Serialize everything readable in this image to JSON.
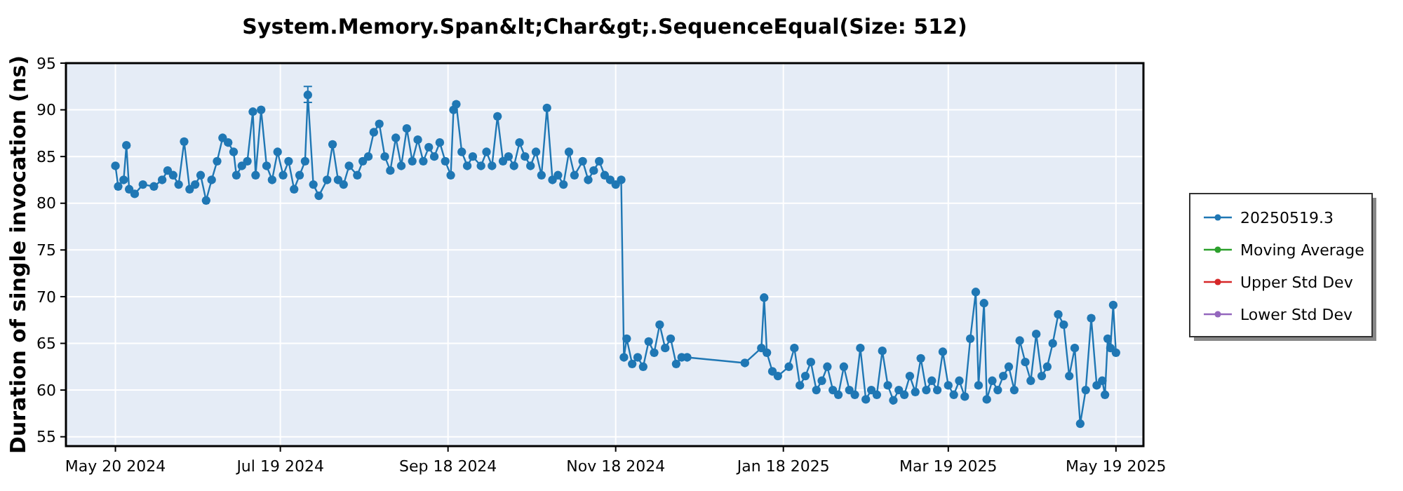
{
  "chart_data": {
    "type": "line",
    "title": "System.Memory.Span&lt;Char&gt;.SequenceEqual(Size: 512)",
    "ylabel": "Duration of single invocation (ns)",
    "xlim": [
      "2024-05-02",
      "2025-05-29"
    ],
    "ylim": [
      54,
      95
    ],
    "xticks": [
      {
        "value": "2024-05-20",
        "label": "May 20 2024"
      },
      {
        "value": "2024-07-19",
        "label": "Jul 19 2024"
      },
      {
        "value": "2024-09-18",
        "label": "Sep 18 2024"
      },
      {
        "value": "2024-11-18",
        "label": "Nov 18 2024"
      },
      {
        "value": "2025-01-18",
        "label": "Jan 18 2025"
      },
      {
        "value": "2025-03-19",
        "label": "Mar 19 2025"
      },
      {
        "value": "2025-05-19",
        "label": "May 19 2025"
      }
    ],
    "yticks": [
      55,
      60,
      65,
      70,
      75,
      80,
      85,
      90,
      95
    ],
    "grid": true,
    "legend": "right",
    "marker": "circle",
    "line_style": "solid",
    "series": [
      {
        "name": "20250519.3",
        "color": "#1f77b4",
        "x": [
          "2024-05-20",
          "2024-05-21",
          "2024-05-23",
          "2024-05-24",
          "2024-05-25",
          "2024-05-27",
          "2024-05-30",
          "2024-06-03",
          "2024-06-06",
          "2024-06-08",
          "2024-06-10",
          "2024-06-12",
          "2024-06-14",
          "2024-06-16",
          "2024-06-18",
          "2024-06-20",
          "2024-06-22",
          "2024-06-24",
          "2024-06-26",
          "2024-06-28",
          "2024-06-30",
          "2024-07-02",
          "2024-07-03",
          "2024-07-05",
          "2024-07-07",
          "2024-07-09",
          "2024-07-10",
          "2024-07-12",
          "2024-07-14",
          "2024-07-16",
          "2024-07-18",
          "2024-07-20",
          "2024-07-22",
          "2024-07-24",
          "2024-07-26",
          "2024-07-28",
          "2024-07-29",
          "2024-07-31",
          "2024-08-02",
          "2024-08-05",
          "2024-08-07",
          "2024-08-09",
          "2024-08-11",
          "2024-08-13",
          "2024-08-16",
          "2024-08-18",
          "2024-08-20",
          "2024-08-22",
          "2024-08-24",
          "2024-08-26",
          "2024-08-28",
          "2024-08-30",
          "2024-09-01",
          "2024-09-03",
          "2024-09-05",
          "2024-09-07",
          "2024-09-09",
          "2024-09-11",
          "2024-09-13",
          "2024-09-15",
          "2024-09-17",
          "2024-09-19",
          "2024-09-20",
          "2024-09-21",
          "2024-09-23",
          "2024-09-25",
          "2024-09-27",
          "2024-09-30",
          "2024-10-02",
          "2024-10-04",
          "2024-10-06",
          "2024-10-08",
          "2024-10-10",
          "2024-10-12",
          "2024-10-14",
          "2024-10-16",
          "2024-10-18",
          "2024-10-20",
          "2024-10-22",
          "2024-10-24",
          "2024-10-26",
          "2024-10-28",
          "2024-10-30",
          "2024-11-01",
          "2024-11-03",
          "2024-11-06",
          "2024-11-08",
          "2024-11-10",
          "2024-11-12",
          "2024-11-14",
          "2024-11-16",
          "2024-11-18",
          "2024-11-20",
          "2024-11-21",
          "2024-11-22",
          "2024-11-24",
          "2024-11-26",
          "2024-11-28",
          "2024-11-30",
          "2024-12-02",
          "2024-12-04",
          "2024-12-06",
          "2024-12-08",
          "2024-12-10",
          "2024-12-12",
          "2024-12-14",
          "2025-01-04",
          "2025-01-10",
          "2025-01-11",
          "2025-01-12",
          "2025-01-14",
          "2025-01-16",
          "2025-01-20",
          "2025-01-22",
          "2025-01-24",
          "2025-01-26",
          "2025-01-28",
          "2025-01-30",
          "2025-02-01",
          "2025-02-03",
          "2025-02-05",
          "2025-02-07",
          "2025-02-09",
          "2025-02-11",
          "2025-02-13",
          "2025-02-15",
          "2025-02-17",
          "2025-02-19",
          "2025-02-21",
          "2025-02-23",
          "2025-02-25",
          "2025-02-27",
          "2025-03-01",
          "2025-03-03",
          "2025-03-05",
          "2025-03-07",
          "2025-03-09",
          "2025-03-11",
          "2025-03-13",
          "2025-03-15",
          "2025-03-17",
          "2025-03-19",
          "2025-03-21",
          "2025-03-23",
          "2025-03-25",
          "2025-03-27",
          "2025-03-29",
          "2025-03-30",
          "2025-04-01",
          "2025-04-02",
          "2025-04-04",
          "2025-04-06",
          "2025-04-08",
          "2025-04-10",
          "2025-04-12",
          "2025-04-14",
          "2025-04-16",
          "2025-04-18",
          "2025-04-20",
          "2025-04-22",
          "2025-04-24",
          "2025-04-26",
          "2025-04-28",
          "2025-04-30",
          "2025-05-02",
          "2025-05-04",
          "2025-05-06",
          "2025-05-08",
          "2025-05-10",
          "2025-05-12",
          "2025-05-14",
          "2025-05-15",
          "2025-05-16",
          "2025-05-17",
          "2025-05-18",
          "2025-05-19"
        ],
        "values": [
          84.0,
          81.8,
          82.5,
          86.2,
          81.5,
          81.0,
          82.0,
          81.8,
          82.5,
          83.5,
          83.0,
          82.0,
          86.6,
          81.5,
          82.0,
          83.0,
          80.3,
          82.5,
          84.5,
          87.0,
          86.5,
          85.5,
          83.0,
          84.0,
          84.5,
          89.8,
          83.0,
          90.0,
          84.0,
          82.5,
          85.5,
          83.0,
          84.5,
          81.5,
          83.0,
          84.5,
          91.6,
          82.0,
          80.8,
          82.5,
          86.3,
          82.5,
          82.0,
          84.0,
          83.0,
          84.5,
          85.0,
          87.6,
          88.5,
          85.0,
          83.5,
          87.0,
          84.0,
          88.0,
          84.5,
          86.8,
          84.5,
          86.0,
          85.0,
          86.5,
          84.5,
          83.0,
          90.0,
          90.6,
          85.5,
          84.0,
          85.0,
          84.0,
          85.5,
          84.0,
          89.3,
          84.5,
          85.0,
          84.0,
          86.5,
          85.0,
          84.0,
          85.5,
          83.0,
          90.2,
          82.5,
          83.0,
          82.0,
          85.5,
          83.0,
          84.5,
          82.5,
          83.5,
          84.5,
          83.0,
          82.5,
          82.0,
          82.5,
          63.5,
          65.5,
          62.8,
          63.5,
          62.5,
          65.2,
          64.0,
          67.0,
          64.5,
          65.5,
          62.8,
          63.5,
          63.5,
          62.9,
          64.5,
          69.9,
          64.0,
          62.0,
          61.5,
          62.5,
          64.5,
          60.5,
          61.5,
          63.0,
          60.0,
          61.0,
          62.5,
          60.0,
          59.5,
          62.5,
          60.0,
          59.5,
          64.5,
          59.0,
          60.0,
          59.5,
          64.2,
          60.5,
          58.9,
          60.0,
          59.5,
          61.5,
          59.8,
          63.4,
          60.0,
          61.0,
          60.0,
          64.1,
          60.5,
          59.5,
          61.0,
          59.3,
          65.5,
          70.5,
          60.5,
          69.3,
          59.0,
          61.0,
          60.0,
          61.5,
          62.5,
          60.0,
          65.3,
          63.0,
          61.0,
          66.0,
          61.5,
          62.5,
          65.0,
          68.1,
          67.0,
          61.5,
          64.5,
          56.4,
          60.0,
          67.7,
          60.5,
          61.0,
          59.5,
          65.5,
          64.5,
          69.1,
          64.0
        ],
        "errors": [
          null,
          null,
          null,
          null,
          null,
          null,
          null,
          null,
          null,
          null,
          null,
          null,
          null,
          null,
          null,
          null,
          null,
          null,
          null,
          null,
          null,
          null,
          null,
          null,
          null,
          null,
          null,
          null,
          null,
          null,
          null,
          null,
          null,
          null,
          null,
          null,
          [
            90.8,
            92.5
          ],
          null,
          null,
          null,
          null,
          null,
          null,
          null,
          null,
          null,
          null,
          null,
          null,
          null,
          null,
          null,
          null,
          null,
          null,
          null,
          null,
          null,
          null,
          null,
          null,
          null,
          null,
          null,
          null,
          null,
          null,
          null,
          null,
          null,
          null,
          null,
          null,
          null,
          null,
          null,
          null,
          null,
          null,
          null,
          null,
          null,
          null,
          null,
          null,
          null,
          null,
          null,
          null,
          null,
          null,
          null,
          null,
          null,
          null,
          null,
          null,
          null,
          null,
          null,
          null,
          null,
          null,
          null,
          null,
          null,
          null,
          null,
          null,
          null,
          null,
          null,
          null,
          null,
          null,
          null,
          null,
          null,
          null,
          null,
          null,
          null,
          null,
          null,
          null,
          null,
          null,
          null,
          null,
          null,
          null,
          null,
          null,
          null,
          null,
          null,
          null,
          null,
          null,
          null,
          null,
          null,
          null,
          null,
          null,
          null,
          null,
          null,
          null,
          null,
          null,
          null,
          null,
          null,
          null,
          null,
          null,
          null,
          null,
          null,
          null,
          null,
          null,
          null,
          null,
          null,
          null,
          null,
          null,
          null,
          null,
          null,
          null,
          null,
          null,
          null
        ]
      },
      {
        "name": "Moving Average",
        "color": "#2ca02c"
      },
      {
        "name": "Upper Std Dev",
        "color": "#d62728"
      },
      {
        "name": "Lower Std Dev",
        "color": "#9467bd"
      }
    ]
  }
}
